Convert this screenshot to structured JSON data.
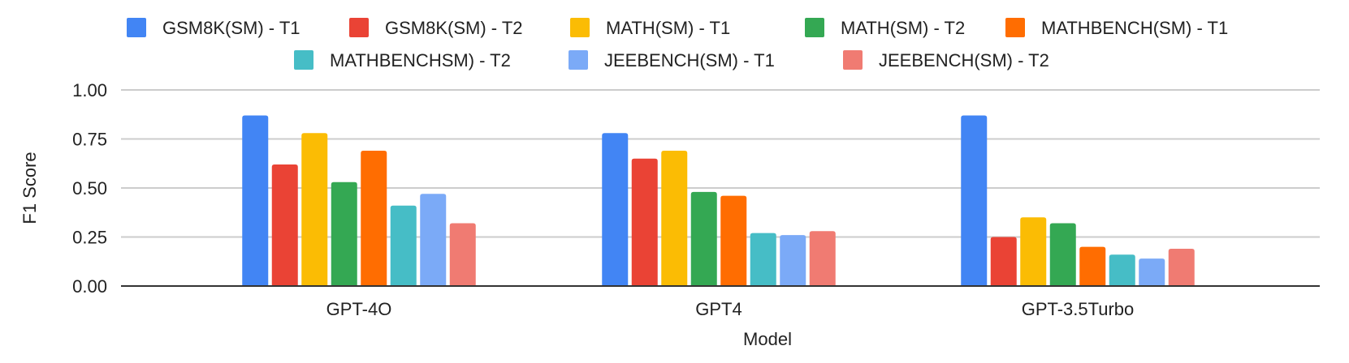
{
  "chart_data": {
    "type": "bar",
    "title": "",
    "xlabel": "Model",
    "ylabel": "F1 Score",
    "ylim": [
      0,
      1.0
    ],
    "yticks": [
      "0.00",
      "0.25",
      "0.50",
      "0.75",
      "1.00"
    ],
    "grid": true,
    "legend_position": "top",
    "categories": [
      "GPT-4O",
      "GPT4",
      "GPT-3.5Turbo"
    ],
    "series": [
      {
        "name": "GSM8K(SM) - T1",
        "color": "#4285F4",
        "values": [
          0.87,
          0.78,
          0.87
        ]
      },
      {
        "name": "GSM8K(SM) - T2",
        "color": "#EA4335",
        "values": [
          0.62,
          0.65,
          0.25
        ]
      },
      {
        "name": "MATH(SM) - T1",
        "color": "#FBBC04",
        "values": [
          0.78,
          0.69,
          0.35
        ]
      },
      {
        "name": "MATH(SM) - T2",
        "color": "#34A853",
        "values": [
          0.53,
          0.48,
          0.32
        ]
      },
      {
        "name": "MATHBENCH(SM) - T1",
        "color": "#FF6D01",
        "values": [
          0.69,
          0.46,
          0.2
        ]
      },
      {
        "name": "MATHBENCHSM) - T2",
        "color": "#46BDC6",
        "values": [
          0.41,
          0.27,
          0.16
        ]
      },
      {
        "name": "JEEBENCH(SM) - T1",
        "color": "#7BAAF7",
        "values": [
          0.47,
          0.26,
          0.14
        ]
      },
      {
        "name": "JEEBENCH(SM) - T2",
        "color": "#F07B72",
        "values": [
          0.32,
          0.28,
          0.19
        ]
      }
    ]
  }
}
